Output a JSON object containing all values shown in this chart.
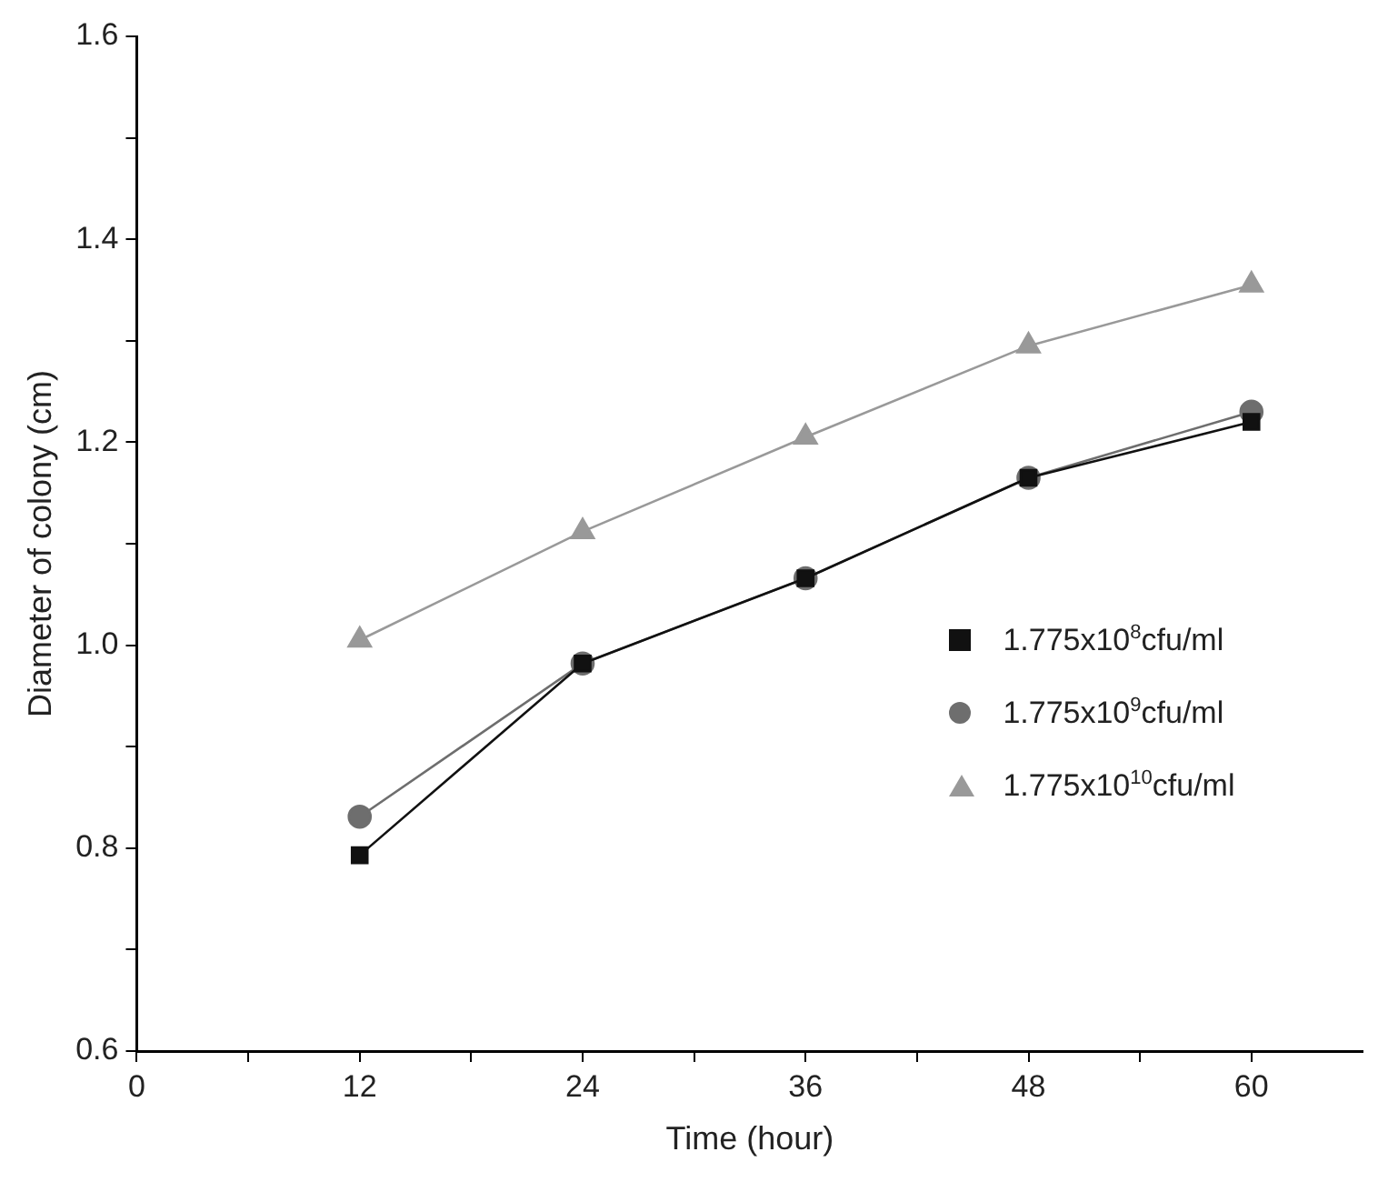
{
  "chart_data": {
    "type": "line",
    "xlabel": "Time (hour)",
    "ylabel": "Diameter of colony (cm)",
    "x": [
      12,
      24,
      36,
      48,
      60
    ],
    "xlim": [
      0,
      66
    ],
    "xticks": [
      0,
      {
        "value": 6,
        "label": null
      },
      12,
      {
        "value": 18,
        "label": null
      },
      24,
      {
        "value": 30,
        "label": null
      },
      36,
      {
        "value": 42,
        "label": null
      },
      48,
      {
        "value": 54,
        "label": null
      },
      60
    ],
    "ylim": [
      0.6,
      1.6
    ],
    "yticks": [
      {
        "value": 0.6,
        "label": "0.6"
      },
      {
        "value": 0.7,
        "label": null
      },
      {
        "value": 0.8,
        "label": "0.8"
      },
      {
        "value": 0.9,
        "label": null
      },
      {
        "value": 1.0,
        "label": "1.0"
      },
      {
        "value": 1.1,
        "label": null
      },
      {
        "value": 1.2,
        "label": "1.2"
      },
      {
        "value": 1.3,
        "label": null
      },
      {
        "value": 1.4,
        "label": "1.4"
      },
      {
        "value": 1.5,
        "label": null
      },
      {
        "value": 1.6,
        "label": "1.6"
      }
    ],
    "grid": false,
    "legend": "right",
    "line_style": "solid",
    "series": [
      {
        "name": "1.775x10$^{8}$cfu/ml",
        "color": "#111111",
        "marker": "square",
        "values": [
          0.793,
          0.982,
          1.066,
          1.165,
          1.22
        ]
      },
      {
        "name": "1.775x10$^{9}$cfu/ml",
        "color": "#6e6e6e",
        "marker": "circle",
        "values": [
          0.831,
          0.982,
          1.066,
          1.165,
          1.23
        ]
      },
      {
        "name": "1.775x10$^{10}$cfu/ml",
        "color": "#999999",
        "marker": "triangle",
        "values": [
          1.005,
          1.112,
          1.205,
          1.295,
          1.355
        ]
      }
    ]
  }
}
